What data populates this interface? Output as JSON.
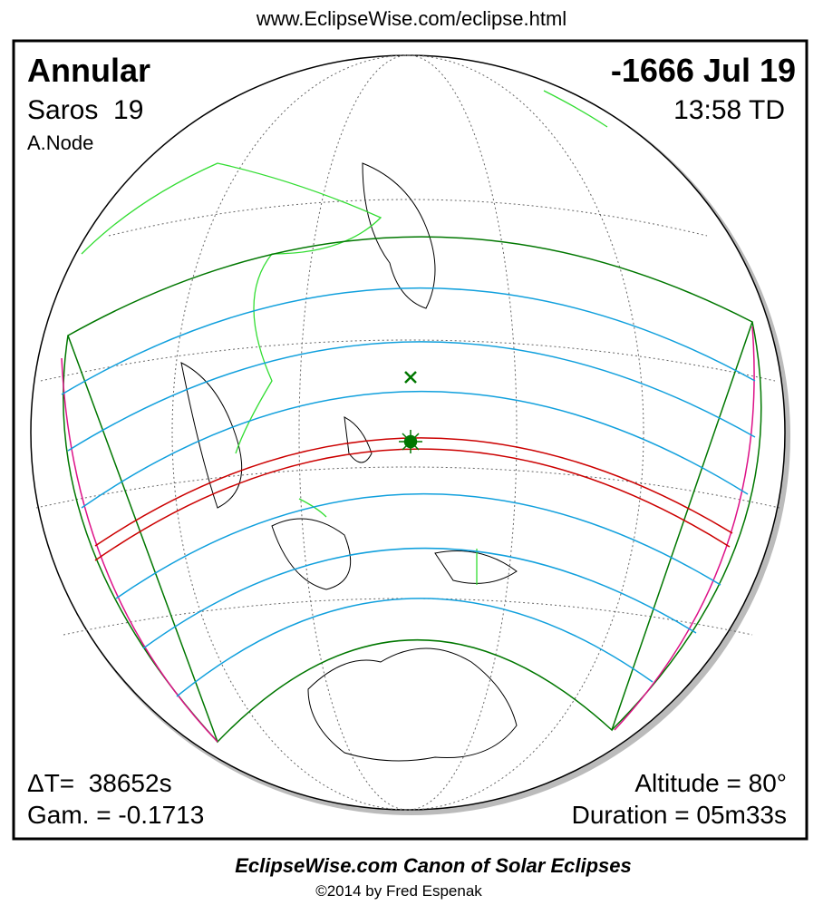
{
  "url": "www.EclipseWise.com/eclipse.html",
  "panel": {
    "eclipse_type": "Annular",
    "date": "-1666 Jul 19",
    "saros": "Saros  19",
    "time": "13:58 TD",
    "node": "A.Node",
    "delta_t": "ΔT=  38652s",
    "gamma": "Gam. = -0.1713",
    "altitude": "Altitude = 80°",
    "duration": "Duration = 05m33s"
  },
  "footer": {
    "title": "EclipseWise.com Canon of Solar Eclipses",
    "copyright": "©2014 by Fred Espenak"
  }
}
